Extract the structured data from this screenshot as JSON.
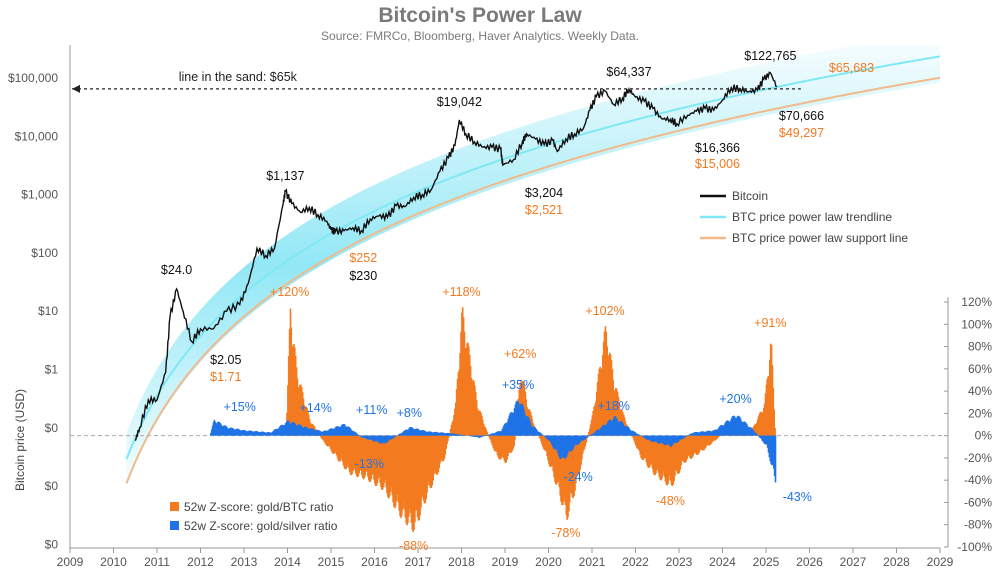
{
  "chart_data": {
    "type": "line",
    "title": "Bitcoin's Power Law",
    "subtitle": "Source: FMRCo, Bloomberg, Haver Analytics. Weekly Data.",
    "ylabel": "Bitcoin price (USD)",
    "x_ticks": [
      "2009",
      "2010",
      "2011",
      "2012",
      "2013",
      "2014",
      "2015",
      "2016",
      "2017",
      "2018",
      "2019",
      "2020",
      "2021",
      "2022",
      "2023",
      "2024",
      "2025",
      "2026",
      "2027",
      "2028",
      "2029"
    ],
    "y_left_ticks": [
      "$100,000",
      "$10,000",
      "$1,000",
      "$100",
      "$10",
      "$1",
      "$0",
      "$0",
      "$0"
    ],
    "y_right_ticks": [
      "120%",
      "100%",
      "80%",
      "60%",
      "40%",
      "20%",
      "0%",
      "-20%",
      "-40%",
      "-60%",
      "-80%",
      "-100%"
    ],
    "y_right_range": [
      -100,
      120
    ],
    "y_left_log_scale": true,
    "colors": {
      "bitcoin": "#111111",
      "trendline": "#7fe8f5",
      "band": "#3ad4ee",
      "support": "#f2b98a",
      "gold_btc": "#f47a20",
      "gold_silver": "#1f73e6",
      "sand_line": "#222222",
      "positive_label": "#f47a20",
      "negative_label": "#1f73e6",
      "price_label": "#111111"
    },
    "sand_line": {
      "label": "line in the sand: $65k",
      "value": 65000
    },
    "series": [
      {
        "name": "Bitcoin",
        "x": [
          2010.5,
          2010.6,
          2010.8,
          2011.0,
          2011.2,
          2011.3,
          2011.45,
          2011.6,
          2011.8,
          2012.0,
          2012.3,
          2012.6,
          2012.9,
          2013.1,
          2013.3,
          2013.5,
          2013.7,
          2013.9,
          2013.95,
          2014.1,
          2014.3,
          2014.5,
          2014.7,
          2014.9,
          2015.0,
          2015.1,
          2015.3,
          2015.5,
          2015.7,
          2015.9,
          2016.1,
          2016.3,
          2016.5,
          2016.7,
          2016.9,
          2017.1,
          2017.3,
          2017.5,
          2017.7,
          2017.85,
          2017.95,
          2018.1,
          2018.3,
          2018.5,
          2018.7,
          2018.9,
          2018.95,
          2019.2,
          2019.4,
          2019.5,
          2019.7,
          2019.9,
          2020.1,
          2020.2,
          2020.4,
          2020.6,
          2020.8,
          2020.95,
          2021.1,
          2021.3,
          2021.5,
          2021.7,
          2021.85,
          2022.0,
          2022.2,
          2022.4,
          2022.6,
          2022.8,
          2022.95,
          2023.2,
          2023.4,
          2023.6,
          2023.8,
          2024.0,
          2024.2,
          2024.4,
          2024.6,
          2024.8,
          2024.95,
          2025.1,
          2025.25
        ],
        "values": [
          0.06,
          0.1,
          0.3,
          0.3,
          0.9,
          8,
          24,
          10,
          3,
          5,
          5,
          10,
          13,
          30,
          120,
          90,
          120,
          700,
          1137,
          700,
          500,
          600,
          450,
          350,
          250,
          230,
          240,
          270,
          240,
          380,
          430,
          410,
          650,
          620,
          900,
          1000,
          1200,
          2500,
          4300,
          7000,
          19042,
          11000,
          8000,
          6500,
          6500,
          6000,
          3204,
          4000,
          8000,
          11000,
          9000,
          7200,
          8500,
          5500,
          9000,
          11000,
          13500,
          28000,
          48000,
          60000,
          35000,
          45000,
          64337,
          47000,
          40000,
          30000,
          20000,
          19500,
          16366,
          23000,
          27000,
          30000,
          28000,
          42000,
          68000,
          65000,
          58000,
          62000,
          95000,
          122765,
          70666
        ]
      },
      {
        "name": "52w Z-score: gold/BTC ratio",
        "points": [
          {
            "x": 2013.95,
            "y": 0
          },
          {
            "x": 2014.05,
            "y": 120
          },
          {
            "x": 2014.2,
            "y": 60
          },
          {
            "x": 2014.5,
            "y": 15
          },
          {
            "x": 2014.8,
            "y": -5
          },
          {
            "x": 2015.1,
            "y": -20
          },
          {
            "x": 2015.4,
            "y": -35
          },
          {
            "x": 2015.8,
            "y": -40
          },
          {
            "x": 2016.2,
            "y": -50
          },
          {
            "x": 2016.6,
            "y": -75
          },
          {
            "x": 2016.9,
            "y": -88
          },
          {
            "x": 2017.2,
            "y": -55
          },
          {
            "x": 2017.6,
            "y": -20
          },
          {
            "x": 2017.85,
            "y": 30
          },
          {
            "x": 2018.0,
            "y": 118
          },
          {
            "x": 2018.15,
            "y": 80
          },
          {
            "x": 2018.35,
            "y": 30
          },
          {
            "x": 2018.6,
            "y": 0
          },
          {
            "x": 2018.8,
            "y": -20
          },
          {
            "x": 2019.0,
            "y": -25
          },
          {
            "x": 2019.2,
            "y": -10
          },
          {
            "x": 2019.35,
            "y": 62
          },
          {
            "x": 2019.5,
            "y": 30
          },
          {
            "x": 2019.7,
            "y": 5
          },
          {
            "x": 2019.9,
            "y": -15
          },
          {
            "x": 2020.2,
            "y": -50
          },
          {
            "x": 2020.4,
            "y": -78
          },
          {
            "x": 2020.6,
            "y": -50
          },
          {
            "x": 2020.8,
            "y": -15
          },
          {
            "x": 2021.0,
            "y": 20
          },
          {
            "x": 2021.3,
            "y": 102
          },
          {
            "x": 2021.5,
            "y": 50
          },
          {
            "x": 2021.7,
            "y": 20
          },
          {
            "x": 2021.9,
            "y": 0
          },
          {
            "x": 2022.1,
            "y": -20
          },
          {
            "x": 2022.4,
            "y": -35
          },
          {
            "x": 2022.8,
            "y": -48
          },
          {
            "x": 2023.1,
            "y": -25
          },
          {
            "x": 2023.5,
            "y": -15
          },
          {
            "x": 2023.8,
            "y": -5
          },
          {
            "x": 2024.2,
            "y": 10
          },
          {
            "x": 2024.6,
            "y": 0
          },
          {
            "x": 2024.95,
            "y": 30
          },
          {
            "x": 2025.1,
            "y": 91
          },
          {
            "x": 2025.2,
            "y": 0
          }
        ]
      },
      {
        "name": "52w Z-score: gold/silver ratio",
        "points": [
          {
            "x": 2012.2,
            "y": 0
          },
          {
            "x": 2012.3,
            "y": 15
          },
          {
            "x": 2012.6,
            "y": 8
          },
          {
            "x": 2013.0,
            "y": 5
          },
          {
            "x": 2013.6,
            "y": 3
          },
          {
            "x": 2014.0,
            "y": 14
          },
          {
            "x": 2014.4,
            "y": 8
          },
          {
            "x": 2014.8,
            "y": 4
          },
          {
            "x": 2015.3,
            "y": 11
          },
          {
            "x": 2015.7,
            "y": -2
          },
          {
            "x": 2016.2,
            "y": -8
          },
          {
            "x": 2016.8,
            "y": 8
          },
          {
            "x": 2017.2,
            "y": 4
          },
          {
            "x": 2017.8,
            "y": 2
          },
          {
            "x": 2018.4,
            "y": -2
          },
          {
            "x": 2018.9,
            "y": 5
          },
          {
            "x": 2019.3,
            "y": 35
          },
          {
            "x": 2019.6,
            "y": 10
          },
          {
            "x": 2020.0,
            "y": -5
          },
          {
            "x": 2020.3,
            "y": -24
          },
          {
            "x": 2020.6,
            "y": -10
          },
          {
            "x": 2021.1,
            "y": 5
          },
          {
            "x": 2021.5,
            "y": 18
          },
          {
            "x": 2021.9,
            "y": 5
          },
          {
            "x": 2022.3,
            "y": -5
          },
          {
            "x": 2022.8,
            "y": -10
          },
          {
            "x": 2023.3,
            "y": 3
          },
          {
            "x": 2023.8,
            "y": 5
          },
          {
            "x": 2024.3,
            "y": 20
          },
          {
            "x": 2024.7,
            "y": 5
          },
          {
            "x": 2025.0,
            "y": -10
          },
          {
            "x": 2025.2,
            "y": -43
          }
        ]
      },
      {
        "name": "BTC price power law trendline"
      },
      {
        "name": "BTC price power law support line"
      }
    ],
    "annotations": [
      {
        "text": "$24.0",
        "x": 2011.45,
        "type": "price"
      },
      {
        "text": "$2.05",
        "x": 2011.9,
        "type": "price"
      },
      {
        "text": "$1.71",
        "x": 2011.9,
        "type": "support"
      },
      {
        "text": "$1,137",
        "x": 2013.95,
        "type": "price"
      },
      {
        "text": "$252",
        "x": 2015.1,
        "type": "support"
      },
      {
        "text": "$230",
        "x": 2015.1,
        "type": "price"
      },
      {
        "text": "$19,042",
        "x": 2017.95,
        "type": "price"
      },
      {
        "text": "$3,204",
        "x": 2018.95,
        "type": "price"
      },
      {
        "text": "$2,521",
        "x": 2018.95,
        "type": "support"
      },
      {
        "text": "$64,337",
        "x": 2021.85,
        "type": "price"
      },
      {
        "text": "$16,366",
        "x": 2022.95,
        "type": "price"
      },
      {
        "text": "$15,006",
        "x": 2022.95,
        "type": "support"
      },
      {
        "text": "$122,765",
        "x": 2025.1,
        "type": "price"
      },
      {
        "text": "$70,666",
        "x": 2025.25,
        "type": "price"
      },
      {
        "text": "$49,297",
        "x": 2025.25,
        "type": "support"
      },
      {
        "text": "$65,683",
        "x": 2026.4,
        "type": "support"
      },
      {
        "text": "+120%",
        "x": 2014.05,
        "type": "pos"
      },
      {
        "text": "+118%",
        "x": 2018.0,
        "type": "pos"
      },
      {
        "text": "+62%",
        "x": 2019.35,
        "type": "pos"
      },
      {
        "text": "+102%",
        "x": 2021.3,
        "type": "pos"
      },
      {
        "text": "+91%",
        "x": 2025.1,
        "type": "pos"
      },
      {
        "text": "-13%",
        "x": 2015.5,
        "type": "neg"
      },
      {
        "text": "-88%",
        "x": 2016.9,
        "type": "pos"
      },
      {
        "text": "-78%",
        "x": 2020.4,
        "type": "pos"
      },
      {
        "text": "-48%",
        "x": 2022.8,
        "type": "pos"
      },
      {
        "text": "-24%",
        "x": 2020.3,
        "type": "neg"
      },
      {
        "text": "-43%",
        "x": 2025.2,
        "type": "neg"
      },
      {
        "text": "+15%",
        "x": 2012.3,
        "type": "neg"
      },
      {
        "text": "+14%",
        "x": 2014.0,
        "type": "neg"
      },
      {
        "text": "+11%",
        "x": 2015.3,
        "type": "neg"
      },
      {
        "text": "+8%",
        "x": 2016.8,
        "type": "neg"
      },
      {
        "text": "+35%",
        "x": 2019.3,
        "type": "neg"
      },
      {
        "text": "+18%",
        "x": 2021.5,
        "type": "neg"
      },
      {
        "text": "+20%",
        "x": 2024.3,
        "type": "neg"
      }
    ],
    "legend_placement": "right",
    "grid": false
  }
}
